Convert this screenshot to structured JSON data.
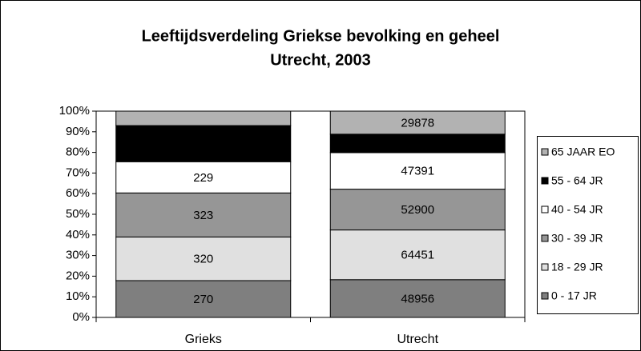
{
  "chart_data": {
    "type": "stacked-percent-bar",
    "title": [
      "Leeftijdsverdeling Griekse bevolking en geheel",
      "Utrecht, 2003"
    ],
    "categories": [
      "Grieks",
      "Utrecht"
    ],
    "series": [
      {
        "name": "0 - 17 JR",
        "color": "#7f7f7f",
        "values": [
          270,
          48956
        ],
        "value_labels": [
          "270",
          "48956"
        ]
      },
      {
        "name": "18 - 29 JR",
        "color": "#e0e0e0",
        "values": [
          320,
          64451
        ],
        "value_labels": [
          "320",
          "64451"
        ]
      },
      {
        "name": "30 - 39 JR",
        "color": "#969696",
        "values": [
          323,
          52900
        ],
        "value_labels": [
          "323",
          "52900"
        ]
      },
      {
        "name": "40 - 54 JR",
        "color": "#ffffff",
        "values": [
          229,
          47391
        ],
        "value_labels": [
          "229",
          "47391"
        ]
      },
      {
        "name": "55 - 64 JR",
        "color": "#000000",
        "values": [
          265,
          23900
        ],
        "value_labels": [
          null,
          null
        ]
      },
      {
        "name": "65 JAAR EO",
        "color": "#b2b2b2",
        "values": [
          106,
          29878
        ],
        "value_labels": [
          null,
          "29878"
        ]
      }
    ],
    "ylim": [
      0,
      100
    ],
    "yticks": [
      {
        "value": 0,
        "label": "0%"
      },
      {
        "value": 10,
        "label": "10%"
      },
      {
        "value": 20,
        "label": "20%"
      },
      {
        "value": 30,
        "label": "30%"
      },
      {
        "value": 40,
        "label": "40%"
      },
      {
        "value": 50,
        "label": "50%"
      },
      {
        "value": 60,
        "label": "60%"
      },
      {
        "value": 70,
        "label": "70%"
      },
      {
        "value": 80,
        "label": "80%"
      },
      {
        "value": 90,
        "label": "90%"
      },
      {
        "value": 100,
        "label": "100%"
      }
    ],
    "legend": "right"
  }
}
